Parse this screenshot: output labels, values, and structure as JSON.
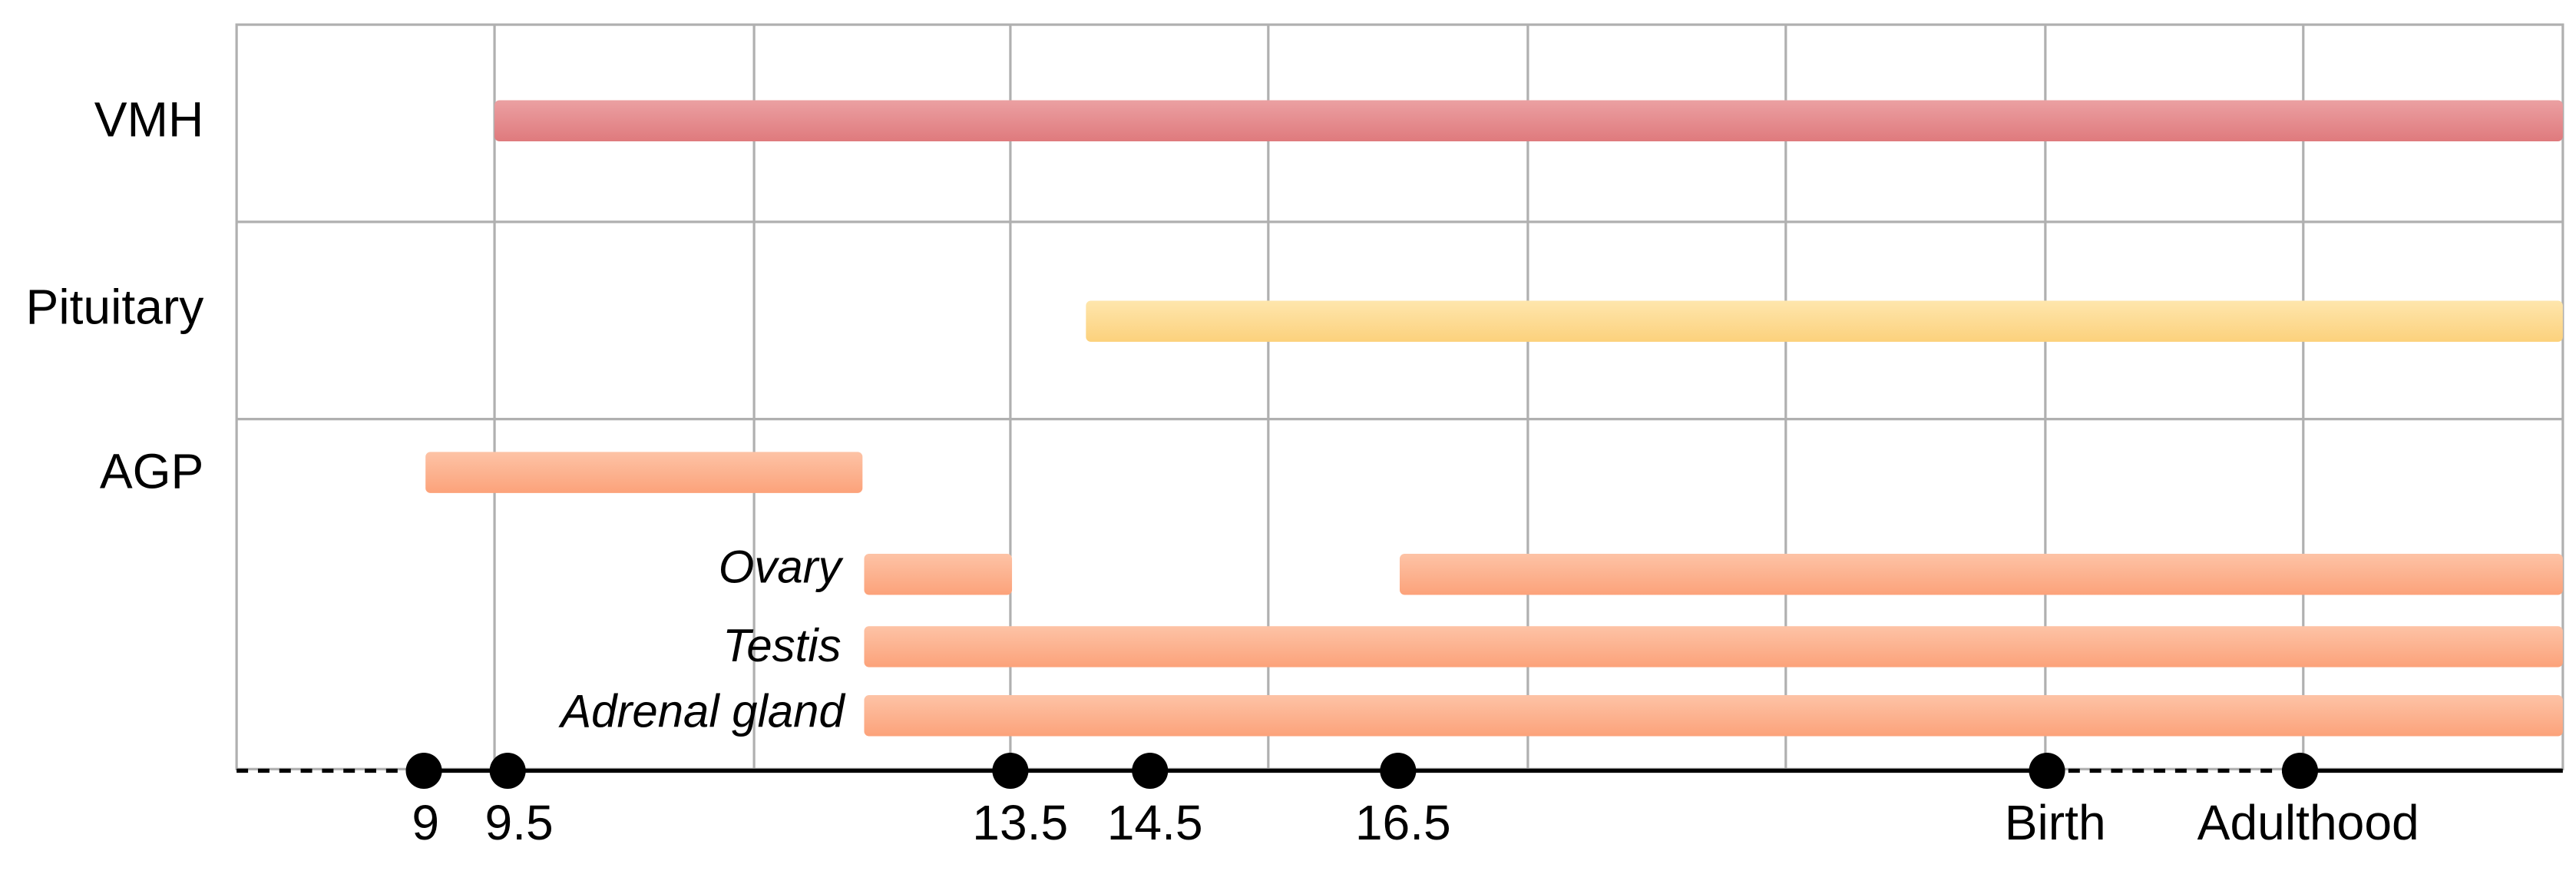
{
  "rows": [
    "VMH",
    "Pituitary",
    "AGP"
  ],
  "sublabels": [
    "Ovary",
    "Testis",
    "Adrenal gland"
  ],
  "timepoints": [
    "9",
    "9.5",
    "13.5",
    "14.5",
    "16.5",
    "Birth",
    "Adulthood"
  ]
}
